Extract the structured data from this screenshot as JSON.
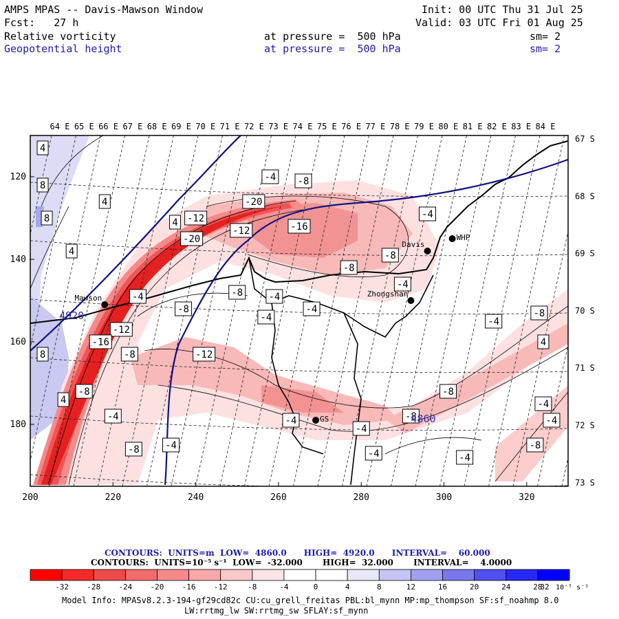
{
  "header": {
    "title": "AMPS MPAS -- Davis-Mawson Window",
    "init": "Init: 00 UTC Thu 31 Jul 25",
    "fcst": "Fcst:   27 h",
    "valid": "Valid: 03 UTC Fri 01 Aug 25",
    "field1": {
      "name": "Relative vorticity",
      "level": "at pressure =  500 hPa",
      "sm": "sm= 2"
    },
    "field2": {
      "name": "Geopotential height",
      "level": "at pressure =  500 hPa",
      "sm": "sm= 2"
    }
  },
  "map": {
    "top_lon_labels": [
      "64 E",
      "65 E",
      "66 E",
      "67 E",
      "68 E",
      "69 E",
      "70 E",
      "71 E",
      "72 E",
      "73 E",
      "74 E",
      "75 E",
      "76 E",
      "77 E",
      "78 E",
      "79 E",
      "80 E",
      "81 E",
      "82 E",
      "83 E",
      "84 E"
    ],
    "right_lat_labels": [
      "67 S",
      "68 S",
      "69 S",
      "70 S",
      "71 S",
      "72 S",
      "73 S"
    ],
    "x_ticks": [
      "200",
      "220",
      "240",
      "260",
      "280",
      "300",
      "320"
    ],
    "y_ticks": [
      "120",
      "140",
      "160",
      "180"
    ],
    "stations": [
      {
        "name": "Mawson",
        "x": 218,
        "y": 151
      },
      {
        "name": "Davis",
        "x": 296,
        "y": 138
      },
      {
        "name": "WHP",
        "x": 302,
        "y": 135
      },
      {
        "name": "Zhongshan",
        "x": 292,
        "y": 150
      },
      {
        "name": "GS",
        "x": 269,
        "y": 179
      }
    ],
    "height_labels": [
      {
        "text": "4920",
        "x": 207,
        "y": 153.5
      },
      {
        "text": "4860",
        "x": 292,
        "y": 178.5
      }
    ],
    "vort_labels": [
      {
        "text": "4",
        "x": 203,
        "y": 113
      },
      {
        "text": "8",
        "x": 203,
        "y": 122
      },
      {
        "text": "8",
        "x": 204,
        "y": 130
      },
      {
        "text": "4",
        "x": 218,
        "y": 126
      },
      {
        "text": "4",
        "x": 210,
        "y": 138
      },
      {
        "text": "4",
        "x": 235,
        "y": 131
      },
      {
        "text": "-4",
        "x": 258,
        "y": 120
      },
      {
        "text": "-8",
        "x": 266,
        "y": 121
      },
      {
        "text": "-20",
        "x": 254,
        "y": 126
      },
      {
        "text": "-12",
        "x": 240,
        "y": 130
      },
      {
        "text": "-12",
        "x": 251,
        "y": 133
      },
      {
        "text": "-16",
        "x": 265,
        "y": 132
      },
      {
        "text": "-20",
        "x": 239,
        "y": 135
      },
      {
        "text": "-4",
        "x": 296,
        "y": 129
      },
      {
        "text": "-8",
        "x": 287,
        "y": 139
      },
      {
        "text": "-8",
        "x": 277,
        "y": 142
      },
      {
        "text": "-4",
        "x": 290,
        "y": 146
      },
      {
        "text": "-8",
        "x": 250,
        "y": 148
      },
      {
        "text": "-4",
        "x": 226,
        "y": 149
      },
      {
        "text": "-4",
        "x": 259,
        "y": 149
      },
      {
        "text": "-4",
        "x": 268,
        "y": 152
      },
      {
        "text": "-8",
        "x": 237,
        "y": 152
      },
      {
        "text": "-4",
        "x": 257,
        "y": 154
      },
      {
        "text": "-12",
        "x": 222,
        "y": 157
      },
      {
        "text": "-16",
        "x": 217,
        "y": 160
      },
      {
        "text": "-8",
        "x": 224,
        "y": 163
      },
      {
        "text": "-12",
        "x": 242,
        "y": 163
      },
      {
        "text": "8",
        "x": 203,
        "y": 163
      },
      {
        "text": "-8",
        "x": 213,
        "y": 172
      },
      {
        "text": "4",
        "x": 208,
        "y": 174
      },
      {
        "text": "-4",
        "x": 220,
        "y": 178
      },
      {
        "text": "-8",
        "x": 225,
        "y": 186
      },
      {
        "text": "-4",
        "x": 234,
        "y": 185
      },
      {
        "text": "-4",
        "x": 280,
        "y": 181
      },
      {
        "text": "-8",
        "x": 292,
        "y": 178
      },
      {
        "text": "-4",
        "x": 283,
        "y": 187
      },
      {
        "text": "-4",
        "x": 305,
        "y": 188
      },
      {
        "text": "-8",
        "x": 301,
        "y": 172
      },
      {
        "text": "-4",
        "x": 312,
        "y": 155
      },
      {
        "text": "-8",
        "x": 323,
        "y": 153
      },
      {
        "text": "4",
        "x": 324,
        "y": 160
      },
      {
        "text": "-4",
        "x": 324,
        "y": 175
      },
      {
        "text": "-4",
        "x": 326,
        "y": 179
      },
      {
        "text": "-8",
        "x": 322,
        "y": 185
      },
      {
        "text": "-4",
        "x": 263,
        "y": 179
      }
    ]
  },
  "footer": {
    "line1": "CONTOURS:  UNITS=m  LOW=  4860.0      HIGH=  4920.0      INTERVAL=    60.000",
    "line2": "CONTOURS:  UNITS=10⁻⁵ s⁻¹  LOW=  -32.000       HIGH=  32.000       INTERVAL=    4.0000",
    "colorbar_labels": [
      "-32",
      "-28",
      "-24",
      "-20",
      "-16",
      "-12",
      "-8",
      "-4",
      "0",
      "4",
      "8",
      "12",
      "16",
      "20",
      "24",
      "28",
      "32"
    ],
    "colorbar_units": "10⁻⁵ s⁻¹",
    "colorbar_colors": [
      "#ff0000",
      "#f42a2a",
      "#ef4a4a",
      "#f26a6a",
      "#f58a8a",
      "#f8a8a8",
      "#fbc8c8",
      "#fde4e4",
      "#ffffff",
      "#ffffff",
      "#e8e8fa",
      "#c4c4f5",
      "#a0a0f0",
      "#7878ec",
      "#5050f0",
      "#2828f5",
      "#0000ff"
    ],
    "model_info_1": "Model Info: MPASv8.2.3-194-gf29cd82c CU:cu_grell_freitas PBL:bl_mynn MP:mp_thompson SF:sf_noahmp 8.0",
    "model_info_2": "LW:rrtmg_lw SW:rrtmg_sw SFLAY:sf_mynn"
  }
}
